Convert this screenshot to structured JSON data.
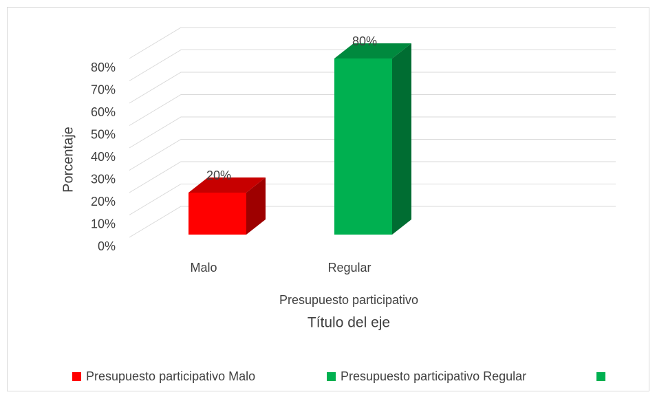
{
  "chart_data": {
    "type": "bar3d",
    "categories": [
      "Malo",
      "Regular"
    ],
    "values": [
      20,
      80
    ],
    "value_labels": [
      "20%",
      "80%"
    ],
    "colors": [
      "#ff0000",
      "#00b050"
    ],
    "y_label": "Porcentaje",
    "x_label": "Presupuesto participativo",
    "x_axis_title": "Título del eje",
    "ylim": [
      0,
      80
    ],
    "yticks": [
      {
        "value": 0,
        "label": "0%"
      },
      {
        "value": 10,
        "label": "10%"
      },
      {
        "value": 20,
        "label": "20%"
      },
      {
        "value": 30,
        "label": "30%"
      },
      {
        "value": 40,
        "label": "40%"
      },
      {
        "value": 50,
        "label": "50%"
      },
      {
        "value": 60,
        "label": "60%"
      },
      {
        "value": 70,
        "label": "70%"
      },
      {
        "value": 80,
        "label": "80%"
      }
    ],
    "grid": true,
    "legend": [
      {
        "name": "Presupuesto participativo Malo",
        "color": "#ff0000"
      },
      {
        "name": "Presupuesto participativo Regular",
        "color": "#00b050"
      },
      {
        "name": null,
        "color": "#00b050"
      }
    ]
  }
}
